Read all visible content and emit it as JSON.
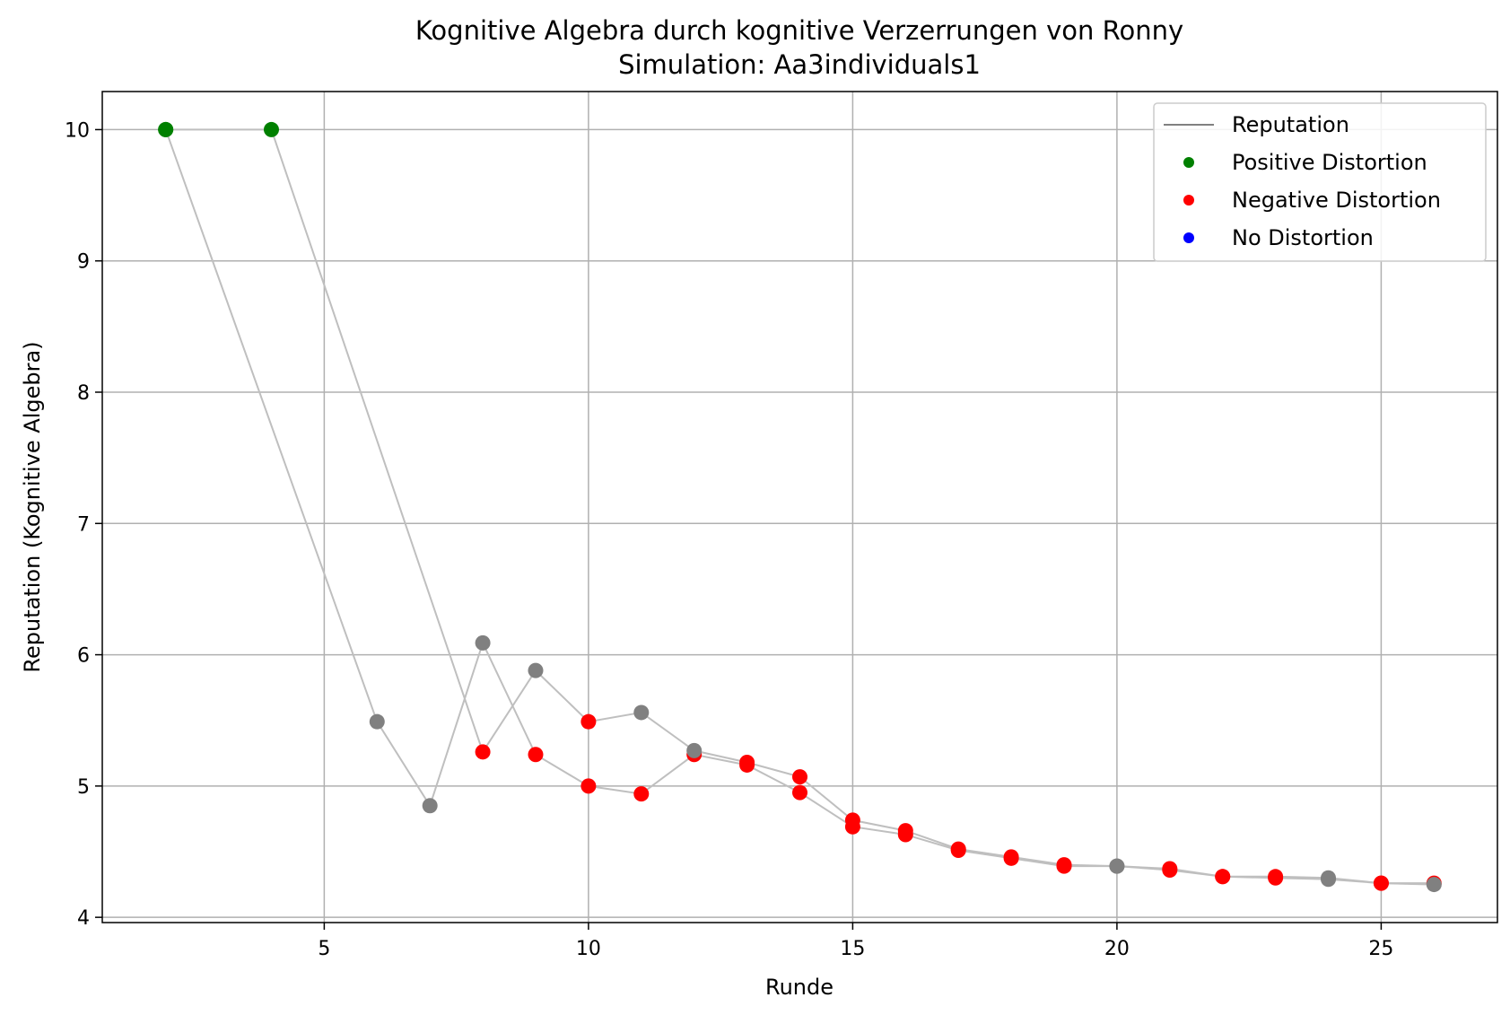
{
  "chart_data": {
    "type": "scatter",
    "title": "Kognitive Algebra durch kognitive Verzerrungen von Ronny",
    "subtitle": "Simulation: Aa3individuals1",
    "xlabel": "Runde",
    "ylabel": "Reputation (Kognitive Algebra)",
    "xlim": [
      0.8,
      27.2
    ],
    "ylim": [
      3.96,
      10.29
    ],
    "xticks": [
      5,
      10,
      15,
      20,
      25
    ],
    "yticks": [
      4,
      5,
      6,
      7,
      8,
      9,
      10
    ],
    "grid": true,
    "legend_position": "top-right",
    "colors": {
      "line": "#bfbfbf",
      "legend_line": "#808080",
      "positive": "#008000",
      "negative": "#ff0000",
      "none": "#0000ff",
      "neutral": "#808080"
    },
    "legend": [
      {
        "label": "Reputation",
        "kind": "line",
        "color": "#808080"
      },
      {
        "label": "Positive Distortion",
        "kind": "marker",
        "color": "#008000"
      },
      {
        "label": "Negative Distortion",
        "kind": "marker",
        "color": "#ff0000"
      },
      {
        "label": "No Distortion",
        "kind": "marker",
        "color": "#0000ff"
      }
    ],
    "series": [
      {
        "points": [
          {
            "x": 2,
            "y": 10.0,
            "c": "positive"
          },
          {
            "x": 6,
            "y": 5.49,
            "c": "neutral"
          },
          {
            "x": 7,
            "y": 4.85,
            "c": "neutral"
          },
          {
            "x": 8,
            "y": 6.09,
            "c": "neutral"
          },
          {
            "x": 9,
            "y": 5.24,
            "c": "negative"
          },
          {
            "x": 10,
            "y": 5.0,
            "c": "negative"
          },
          {
            "x": 11,
            "y": 4.94,
            "c": "negative"
          },
          {
            "x": 12,
            "y": 5.24,
            "c": "negative"
          },
          {
            "x": 13,
            "y": 5.16,
            "c": "negative"
          },
          {
            "x": 14,
            "y": 4.95,
            "c": "negative"
          },
          {
            "x": 15,
            "y": 4.69,
            "c": "negative"
          },
          {
            "x": 16,
            "y": 4.63,
            "c": "negative"
          },
          {
            "x": 17,
            "y": 4.51,
            "c": "negative"
          },
          {
            "x": 18,
            "y": 4.45,
            "c": "negative"
          },
          {
            "x": 19,
            "y": 4.39,
            "c": "negative"
          },
          {
            "x": 20,
            "y": 4.39,
            "c": "neutral"
          },
          {
            "x": 21,
            "y": 4.36,
            "c": "negative"
          },
          {
            "x": 22,
            "y": 4.31,
            "c": "negative"
          },
          {
            "x": 23,
            "y": 4.3,
            "c": "negative"
          },
          {
            "x": 24,
            "y": 4.29,
            "c": "neutral"
          },
          {
            "x": 25,
            "y": 4.26,
            "c": "negative"
          },
          {
            "x": 26,
            "y": 4.26,
            "c": "negative"
          }
        ]
      },
      {
        "points": [
          {
            "x": 2,
            "y": 10.0,
            "c": "positive"
          },
          {
            "x": 4,
            "y": 10.0,
            "c": "positive"
          },
          {
            "x": 8,
            "y": 5.26,
            "c": "negative"
          },
          {
            "x": 9,
            "y": 5.88,
            "c": "neutral"
          },
          {
            "x": 10,
            "y": 5.49,
            "c": "negative"
          },
          {
            "x": 11,
            "y": 5.56,
            "c": "neutral"
          },
          {
            "x": 12,
            "y": 5.27,
            "c": "neutral"
          },
          {
            "x": 13,
            "y": 5.18,
            "c": "negative"
          },
          {
            "x": 14,
            "y": 5.07,
            "c": "negative"
          },
          {
            "x": 15,
            "y": 4.74,
            "c": "negative"
          },
          {
            "x": 16,
            "y": 4.66,
            "c": "negative"
          },
          {
            "x": 17,
            "y": 4.52,
            "c": "negative"
          },
          {
            "x": 18,
            "y": 4.46,
            "c": "negative"
          },
          {
            "x": 19,
            "y": 4.4,
            "c": "negative"
          },
          {
            "x": 20,
            "y": 4.39,
            "c": "neutral"
          },
          {
            "x": 21,
            "y": 4.37,
            "c": "negative"
          },
          {
            "x": 22,
            "y": 4.31,
            "c": "negative"
          },
          {
            "x": 23,
            "y": 4.31,
            "c": "negative"
          },
          {
            "x": 24,
            "y": 4.3,
            "c": "neutral"
          },
          {
            "x": 25,
            "y": 4.26,
            "c": "negative"
          },
          {
            "x": 26,
            "y": 4.25,
            "c": "neutral"
          }
        ]
      }
    ]
  }
}
